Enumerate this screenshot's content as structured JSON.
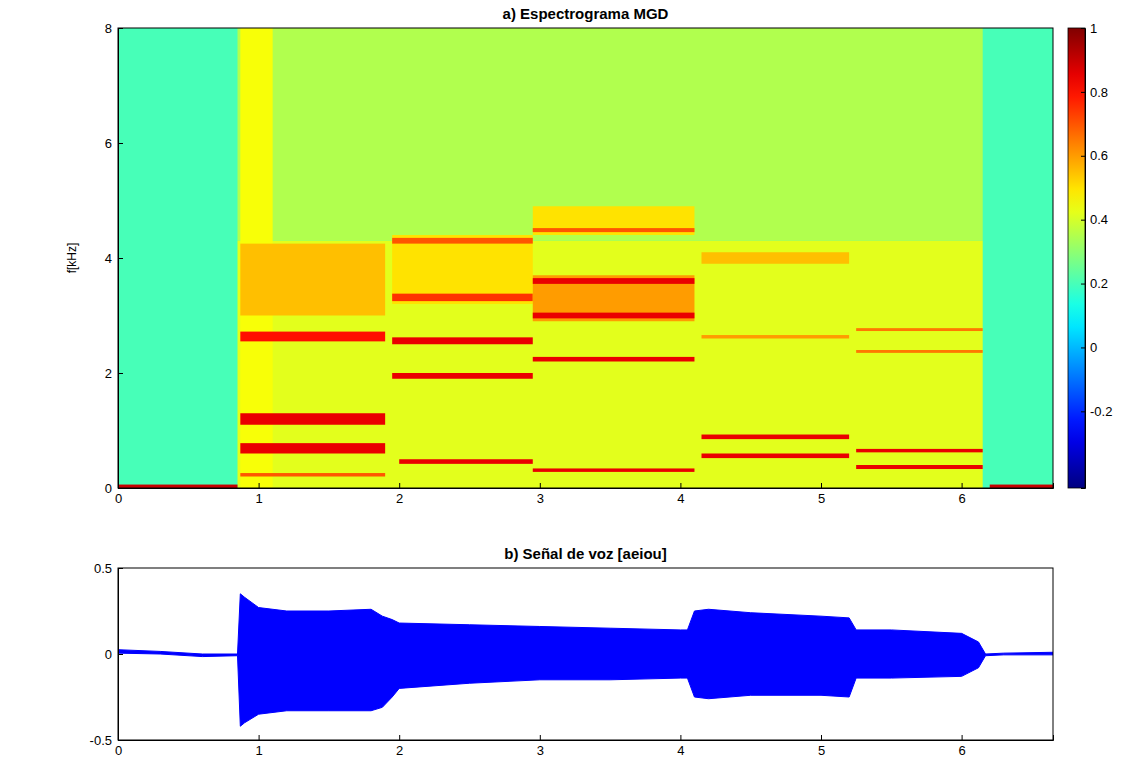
{
  "chart_data": [
    {
      "type": "heatmap",
      "title": "a) Espectrograma MGD",
      "y_label": "f[kHz]",
      "xlim": [
        0,
        6.65
      ],
      "xticks": [
        0,
        1,
        2,
        3,
        4,
        5,
        6
      ],
      "ylim": [
        0,
        8
      ],
      "yticks": [
        0,
        2,
        4,
        6,
        8
      ],
      "cells": [
        {
          "x0": 0,
          "x1": 6.65,
          "y0": 0,
          "y1": 8,
          "value": 0.2
        },
        {
          "x0": 0.85,
          "x1": 6.15,
          "y0": 4.3,
          "y1": 8,
          "value": 0.35
        },
        {
          "x0": 0.85,
          "x1": 6.15,
          "y0": 0,
          "y1": 4.3,
          "value": 0.42
        },
        {
          "x0": 0.87,
          "x1": 1.1,
          "y0": 0,
          "y1": 8,
          "value": 0.45
        },
        {
          "x0": 0.87,
          "x1": 1.9,
          "y0": 3.0,
          "y1": 4.25,
          "value": 0.55
        },
        {
          "x0": 0.87,
          "x1": 1.9,
          "y0": 2.55,
          "y1": 2.72,
          "value": 0.8
        },
        {
          "x0": 0.87,
          "x1": 1.9,
          "y0": 1.1,
          "y1": 1.3,
          "value": 0.85
        },
        {
          "x0": 0.87,
          "x1": 1.9,
          "y0": 0.6,
          "y1": 0.78,
          "value": 0.85
        },
        {
          "x0": 0.87,
          "x1": 1.9,
          "y0": 0.2,
          "y1": 0.26,
          "value": 0.7
        },
        {
          "x0": 1.95,
          "x1": 2.95,
          "y0": 3.2,
          "y1": 4.4,
          "value": 0.5
        },
        {
          "x0": 1.95,
          "x1": 2.95,
          "y0": 3.25,
          "y1": 3.38,
          "value": 0.75
        },
        {
          "x0": 1.95,
          "x1": 2.95,
          "y0": 2.5,
          "y1": 2.62,
          "value": 0.85
        },
        {
          "x0": 1.95,
          "x1": 2.95,
          "y0": 1.9,
          "y1": 2.0,
          "value": 0.85
        },
        {
          "x0": 2.0,
          "x1": 2.95,
          "y0": 0.42,
          "y1": 0.5,
          "value": 0.85
        },
        {
          "x0": 1.95,
          "x1": 2.95,
          "y0": 4.25,
          "y1": 4.35,
          "value": 0.7
        },
        {
          "x0": 2.95,
          "x1": 4.1,
          "y0": 2.9,
          "y1": 3.7,
          "value": 0.6
        },
        {
          "x0": 2.95,
          "x1": 4.1,
          "y0": 3.55,
          "y1": 3.65,
          "value": 0.85
        },
        {
          "x0": 2.95,
          "x1": 4.1,
          "y0": 2.95,
          "y1": 3.05,
          "value": 0.85
        },
        {
          "x0": 2.95,
          "x1": 4.1,
          "y0": 2.2,
          "y1": 2.28,
          "value": 0.85
        },
        {
          "x0": 2.95,
          "x1": 4.1,
          "y0": 0.28,
          "y1": 0.34,
          "value": 0.85
        },
        {
          "x0": 2.95,
          "x1": 4.1,
          "y0": 4.4,
          "y1": 4.9,
          "value": 0.5
        },
        {
          "x0": 2.95,
          "x1": 4.1,
          "y0": 4.45,
          "y1": 4.52,
          "value": 0.7
        },
        {
          "x0": 4.15,
          "x1": 5.2,
          "y0": 3.9,
          "y1": 4.1,
          "value": 0.55
        },
        {
          "x0": 4.15,
          "x1": 5.2,
          "y0": 0.85,
          "y1": 0.93,
          "value": 0.85
        },
        {
          "x0": 4.15,
          "x1": 5.2,
          "y0": 0.52,
          "y1": 0.6,
          "value": 0.85
        },
        {
          "x0": 4.15,
          "x1": 5.2,
          "y0": 2.6,
          "y1": 2.66,
          "value": 0.6
        },
        {
          "x0": 5.25,
          "x1": 6.15,
          "y0": 0.62,
          "y1": 0.68,
          "value": 0.85
        },
        {
          "x0": 5.25,
          "x1": 6.15,
          "y0": 0.33,
          "y1": 0.4,
          "value": 0.85
        },
        {
          "x0": 5.25,
          "x1": 6.15,
          "y0": 2.35,
          "y1": 2.4,
          "value": 0.65
        },
        {
          "x0": 5.25,
          "x1": 6.15,
          "y0": 2.73,
          "y1": 2.78,
          "value": 0.65
        },
        {
          "x0": 0,
          "x1": 0.85,
          "y0": 0,
          "y1": 0.06,
          "value": 0.9
        },
        {
          "x0": 6.2,
          "x1": 6.65,
          "y0": 0,
          "y1": 0.06,
          "value": 0.9
        }
      ],
      "colorbar": {
        "range": [
          -0.44,
          1
        ],
        "ticks": [
          -0.2,
          0,
          0.2,
          0.4,
          0.6,
          0.8,
          1
        ]
      }
    },
    {
      "type": "area",
      "title": "b) Señal de voz [aeiou]",
      "color": "#0000ff",
      "xlim": [
        0,
        6.65
      ],
      "xticks": [
        0,
        1,
        2,
        3,
        4,
        5,
        6
      ],
      "ylim": [
        -0.5,
        0.5
      ],
      "yticks": [
        -0.5,
        0,
        0.5
      ],
      "x": [
        0,
        0.3,
        0.6,
        0.85,
        0.87,
        0.9,
        1.0,
        1.2,
        1.5,
        1.8,
        1.88,
        1.95,
        2.0,
        2.5,
        3.0,
        3.5,
        4.0,
        4.05,
        4.1,
        4.2,
        4.5,
        5.0,
        5.2,
        5.25,
        5.5,
        6.0,
        6.12,
        6.17,
        6.3,
        6.65
      ],
      "max": [
        0.025,
        0.015,
        0.0,
        0.0,
        0.35,
        0.33,
        0.27,
        0.25,
        0.25,
        0.26,
        0.22,
        0.2,
        0.18,
        0.17,
        0.16,
        0.15,
        0.14,
        0.14,
        0.25,
        0.26,
        0.24,
        0.22,
        0.21,
        0.14,
        0.14,
        0.12,
        0.07,
        0.0,
        0.005,
        0.01
      ],
      "min": [
        0.005,
        0.0,
        -0.015,
        -0.01,
        -0.42,
        -0.4,
        -0.35,
        -0.33,
        -0.33,
        -0.33,
        -0.31,
        -0.25,
        -0.2,
        -0.17,
        -0.15,
        -0.15,
        -0.14,
        -0.14,
        -0.25,
        -0.26,
        -0.24,
        -0.24,
        -0.25,
        -0.14,
        -0.14,
        -0.13,
        -0.08,
        -0.01,
        -0.005,
        -0.005
      ]
    }
  ]
}
